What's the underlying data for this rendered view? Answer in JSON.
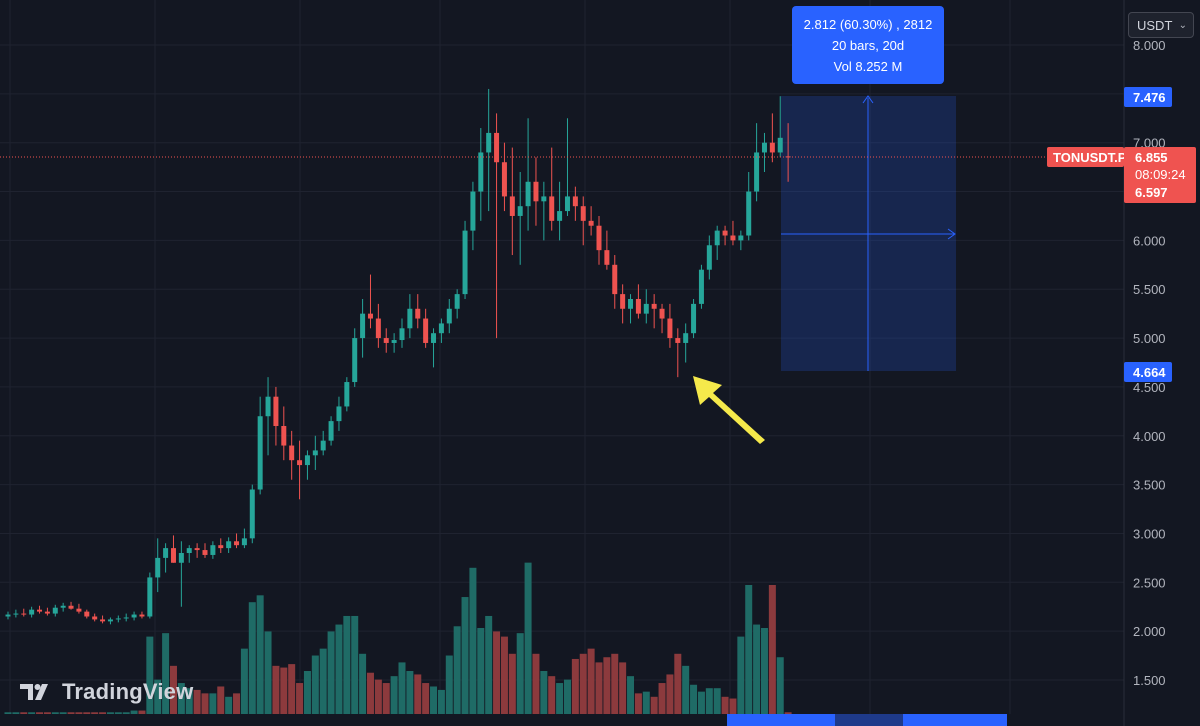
{
  "currency": {
    "label": "USDT"
  },
  "measure": {
    "line1": "2.812 (60.30%) , 2812",
    "line2": "20 bars, 20d",
    "line3": "Vol 8.252 M"
  },
  "symbol": {
    "name": "TONUSDT.P",
    "last_price": "6.855",
    "countdown": "08:09:24"
  },
  "price_tags": {
    "measure_top": "7.476",
    "measure_bottom": "4.664",
    "lower": "6.597"
  },
  "logo": {
    "text": "TradingView"
  },
  "colors": {
    "background": "#131722",
    "up": "#26a69a",
    "down": "#ef5350",
    "volume_up": "#1f6b66",
    "volume_down": "#8c3a3d",
    "accent": "#2962ff",
    "arrow": "#f5e94b"
  },
  "chart_data": {
    "type": "candlestick",
    "ylim": [
      1.3,
      8.25
    ],
    "y_ticks": [
      "1.500",
      "2.000",
      "2.500",
      "3.000",
      "3.500",
      "4.000",
      "4.500",
      "5.000",
      "5.500",
      "6.000",
      "6.500",
      "7.000",
      "7.500",
      "8.000"
    ],
    "last_price": 6.855,
    "measure_range": {
      "from_bar": 94,
      "to_bar": 114,
      "low": 4.664,
      "high": 7.476
    },
    "annotation": {
      "type": "arrow",
      "color": "yellow",
      "points_to_bar": 85
    },
    "ohlc": [
      [
        2.15,
        2.2,
        2.12,
        2.17
      ],
      [
        2.17,
        2.22,
        2.14,
        2.18
      ],
      [
        2.18,
        2.23,
        2.15,
        2.17
      ],
      [
        2.17,
        2.25,
        2.14,
        2.22
      ],
      [
        2.22,
        2.26,
        2.18,
        2.2
      ],
      [
        2.2,
        2.24,
        2.16,
        2.18
      ],
      [
        2.18,
        2.27,
        2.15,
        2.24
      ],
      [
        2.24,
        2.29,
        2.2,
        2.26
      ],
      [
        2.26,
        2.3,
        2.22,
        2.23
      ],
      [
        2.23,
        2.28,
        2.18,
        2.2
      ],
      [
        2.2,
        2.22,
        2.13,
        2.15
      ],
      [
        2.15,
        2.18,
        2.1,
        2.12
      ],
      [
        2.12,
        2.16,
        2.08,
        2.1
      ],
      [
        2.1,
        2.14,
        2.07,
        2.12
      ],
      [
        2.12,
        2.16,
        2.09,
        2.13
      ],
      [
        2.13,
        2.18,
        2.1,
        2.14
      ],
      [
        2.14,
        2.2,
        2.11,
        2.17
      ],
      [
        2.17,
        2.2,
        2.13,
        2.15
      ],
      [
        2.15,
        2.6,
        2.13,
        2.55
      ],
      [
        2.55,
        2.95,
        2.4,
        2.75
      ],
      [
        2.75,
        2.9,
        2.6,
        2.85
      ],
      [
        2.85,
        2.98,
        2.7,
        2.7
      ],
      [
        2.7,
        2.92,
        2.25,
        2.8
      ],
      [
        2.8,
        2.88,
        2.7,
        2.85
      ],
      [
        2.85,
        2.9,
        2.75,
        2.83
      ],
      [
        2.83,
        2.9,
        2.75,
        2.78
      ],
      [
        2.78,
        2.92,
        2.74,
        2.88
      ],
      [
        2.88,
        2.95,
        2.8,
        2.85
      ],
      [
        2.85,
        2.96,
        2.8,
        2.92
      ],
      [
        2.92,
        3.0,
        2.85,
        2.88
      ],
      [
        2.88,
        3.05,
        2.85,
        2.95
      ],
      [
        2.95,
        3.5,
        2.9,
        3.45
      ],
      [
        3.45,
        4.4,
        3.4,
        4.2
      ],
      [
        4.2,
        4.6,
        3.8,
        4.4
      ],
      [
        4.4,
        4.5,
        3.9,
        4.1
      ],
      [
        4.1,
        4.3,
        3.75,
        3.9
      ],
      [
        3.9,
        4.05,
        3.55,
        3.75
      ],
      [
        3.75,
        3.95,
        3.35,
        3.7
      ],
      [
        3.7,
        3.85,
        3.55,
        3.8
      ],
      [
        3.8,
        4.0,
        3.65,
        3.85
      ],
      [
        3.85,
        4.05,
        3.8,
        3.95
      ],
      [
        3.95,
        4.2,
        3.9,
        4.15
      ],
      [
        4.15,
        4.4,
        4.05,
        4.3
      ],
      [
        4.3,
        4.6,
        4.25,
        4.55
      ],
      [
        4.55,
        5.1,
        4.5,
        5.0
      ],
      [
        5.0,
        5.4,
        4.8,
        5.25
      ],
      [
        5.25,
        5.65,
        5.1,
        5.2
      ],
      [
        5.2,
        5.35,
        4.9,
        5.0
      ],
      [
        5.0,
        5.1,
        4.85,
        4.95
      ],
      [
        4.95,
        5.05,
        4.85,
        4.98
      ],
      [
        4.98,
        5.2,
        4.9,
        5.1
      ],
      [
        5.1,
        5.45,
        5.0,
        5.3
      ],
      [
        5.3,
        5.45,
        5.1,
        5.2
      ],
      [
        5.2,
        5.3,
        4.9,
        4.95
      ],
      [
        4.95,
        5.1,
        4.7,
        5.05
      ],
      [
        5.05,
        5.2,
        4.95,
        5.15
      ],
      [
        5.15,
        5.4,
        5.05,
        5.3
      ],
      [
        5.3,
        5.5,
        5.2,
        5.45
      ],
      [
        5.45,
        6.2,
        5.4,
        6.1
      ],
      [
        6.1,
        6.6,
        5.9,
        6.5
      ],
      [
        6.5,
        7.15,
        6.2,
        6.9
      ],
      [
        6.9,
        7.55,
        6.3,
        7.1
      ],
      [
        7.1,
        7.3,
        5.0,
        6.8
      ],
      [
        6.8,
        7.0,
        6.3,
        6.45
      ],
      [
        6.45,
        6.95,
        5.85,
        6.25
      ],
      [
        6.25,
        6.7,
        5.75,
        6.35
      ],
      [
        6.35,
        7.25,
        6.1,
        6.6
      ],
      [
        6.6,
        6.85,
        6.15,
        6.4
      ],
      [
        6.4,
        6.6,
        6.0,
        6.45
      ],
      [
        6.45,
        6.95,
        6.1,
        6.2
      ],
      [
        6.2,
        6.6,
        6.0,
        6.3
      ],
      [
        6.3,
        7.25,
        6.25,
        6.45
      ],
      [
        6.45,
        6.55,
        6.2,
        6.35
      ],
      [
        6.35,
        6.45,
        5.95,
        6.2
      ],
      [
        6.2,
        6.35,
        6.05,
        6.15
      ],
      [
        6.15,
        6.25,
        5.75,
        5.9
      ],
      [
        5.9,
        6.1,
        5.7,
        5.75
      ],
      [
        5.75,
        5.85,
        5.3,
        5.45
      ],
      [
        5.45,
        5.55,
        5.15,
        5.3
      ],
      [
        5.3,
        5.45,
        5.15,
        5.4
      ],
      [
        5.4,
        5.55,
        5.2,
        5.25
      ],
      [
        5.25,
        5.5,
        5.15,
        5.35
      ],
      [
        5.35,
        5.45,
        5.1,
        5.3
      ],
      [
        5.3,
        5.35,
        5.05,
        5.2
      ],
      [
        5.2,
        5.35,
        4.9,
        5.0
      ],
      [
        5.0,
        5.1,
        4.6,
        4.95
      ],
      [
        4.95,
        5.15,
        4.75,
        5.05
      ],
      [
        5.05,
        5.4,
        5.0,
        5.35
      ],
      [
        5.35,
        5.75,
        5.3,
        5.7
      ],
      [
        5.7,
        6.05,
        5.6,
        5.95
      ],
      [
        5.95,
        6.15,
        5.8,
        6.1
      ],
      [
        6.1,
        6.15,
        5.95,
        6.05
      ],
      [
        6.05,
        6.2,
        5.95,
        6.0
      ],
      [
        6.0,
        6.1,
        5.9,
        6.05
      ],
      [
        6.05,
        6.7,
        6.0,
        6.5
      ],
      [
        6.5,
        7.2,
        6.4,
        6.9
      ],
      [
        6.9,
        7.1,
        6.7,
        7.0
      ],
      [
        7.0,
        7.3,
        6.8,
        6.9
      ],
      [
        6.9,
        7.476,
        6.85,
        7.05
      ],
      [
        6.86,
        7.2,
        6.6,
        6.855
      ]
    ],
    "volume_ratio": [
      0.01,
      0.01,
      0.01,
      0.01,
      0.01,
      0.01,
      0.01,
      0.01,
      0.01,
      0.01,
      0.01,
      0.01,
      0.01,
      0.01,
      0.01,
      0.01,
      0.02,
      0.02,
      0.45,
      0.2,
      0.47,
      0.28,
      0.18,
      0.15,
      0.14,
      0.12,
      0.12,
      0.16,
      0.1,
      0.12,
      0.38,
      0.65,
      0.69,
      0.48,
      0.28,
      0.27,
      0.29,
      0.18,
      0.25,
      0.34,
      0.38,
      0.48,
      0.52,
      0.57,
      0.57,
      0.35,
      0.24,
      0.2,
      0.18,
      0.22,
      0.3,
      0.25,
      0.23,
      0.18,
      0.16,
      0.14,
      0.34,
      0.51,
      0.68,
      0.85,
      0.5,
      0.57,
      0.48,
      0.45,
      0.35,
      0.47,
      0.88,
      0.35,
      0.25,
      0.22,
      0.18,
      0.2,
      0.32,
      0.35,
      0.38,
      0.3,
      0.33,
      0.35,
      0.3,
      0.22,
      0.12,
      0.13,
      0.1,
      0.18,
      0.23,
      0.35,
      0.28,
      0.17,
      0.13,
      0.15,
      0.15,
      0.1,
      0.09,
      0.45,
      0.75,
      0.52,
      0.5,
      0.75,
      0.33,
      0.01
    ]
  }
}
